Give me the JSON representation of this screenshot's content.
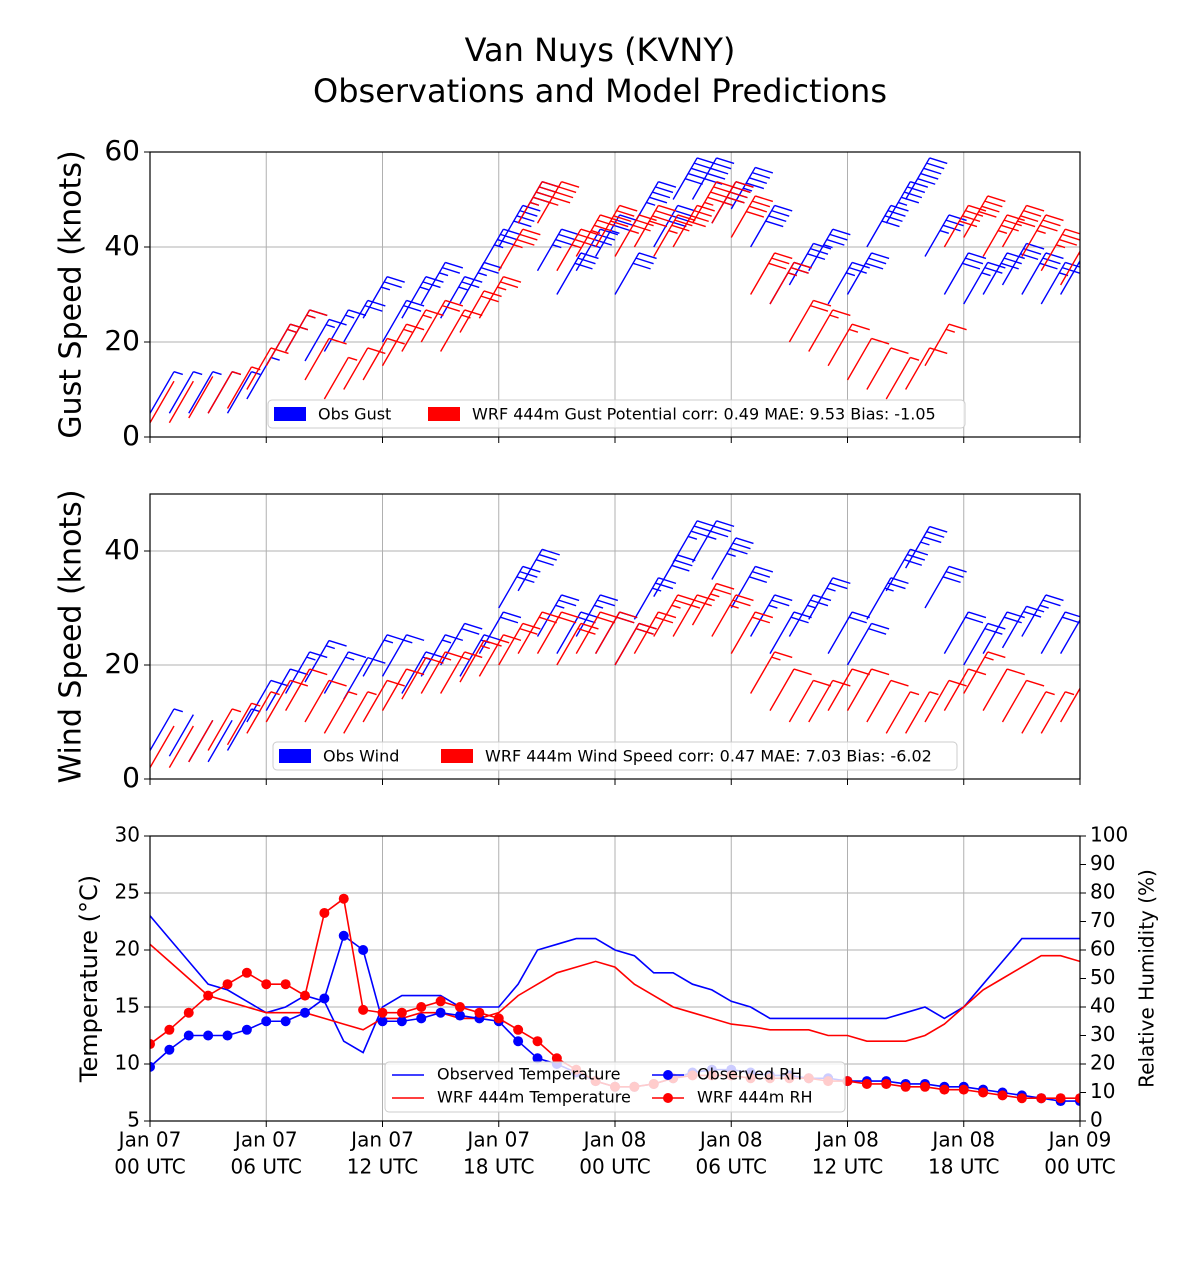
{
  "chart_data": [
    {
      "type": "barbs",
      "title": "Van Nuys (KVNY)",
      "subtitle": "Observations and Model Predictions",
      "ylabel": "Gust Speed (knots)",
      "ylim": [
        0,
        60
      ],
      "yticks": [
        0,
        20,
        40,
        60
      ],
      "xlim": [
        0,
        48
      ],
      "xticks": [
        0,
        6,
        12,
        18,
        24,
        30,
        36,
        42,
        48
      ],
      "grid": true,
      "x": [
        0,
        1,
        2,
        3,
        4,
        5,
        6,
        7,
        8,
        9,
        10,
        11,
        12,
        13,
        14,
        15,
        16,
        17,
        18,
        19,
        20,
        21,
        22,
        23,
        24,
        25,
        26,
        27,
        28,
        29,
        30,
        31,
        32,
        33,
        34,
        35,
        36,
        37,
        38,
        39,
        40,
        41,
        42,
        43,
        44,
        45,
        46,
        47,
        48
      ],
      "series": [
        {
          "name": "Obs Gust",
          "color": "#0000ff",
          "values": [
            5,
            5,
            5,
            5,
            5,
            8,
            15,
            18,
            16,
            18,
            20,
            25,
            20,
            25,
            28,
            25,
            28,
            35,
            40,
            45,
            35,
            30,
            35,
            38,
            30,
            45,
            40,
            50,
            50,
            45,
            48,
            40,
            28,
            32,
            35,
            28,
            30,
            40,
            45,
            50,
            38,
            30,
            28,
            30,
            32,
            30,
            28,
            30,
            30
          ]
        },
        {
          "name": "WRF 444m Gust Potential corr: 0.49 MAE: 9.53 Bias: -1.05",
          "color": "#ff0000",
          "values": [
            3,
            3,
            4,
            5,
            6,
            10,
            15,
            18,
            12,
            8,
            10,
            12,
            15,
            18,
            20,
            18,
            22,
            25,
            35,
            45,
            45,
            35,
            38,
            40,
            38,
            40,
            38,
            40,
            45,
            45,
            42,
            30,
            28,
            20,
            18,
            15,
            12,
            10,
            8,
            10,
            15,
            40,
            42,
            38,
            40,
            38,
            35,
            32,
            28
          ]
        }
      ]
    },
    {
      "type": "barbs",
      "ylabel": "Wind Speed (knots)",
      "ylim": [
        0,
        50
      ],
      "yticks": [
        0,
        20,
        40
      ],
      "xlim": [
        0,
        48
      ],
      "xticks": [
        0,
        6,
        12,
        18,
        24,
        30,
        36,
        42,
        48
      ],
      "grid": true,
      "x": [
        0,
        1,
        2,
        3,
        4,
        5,
        6,
        7,
        8,
        9,
        10,
        11,
        12,
        13,
        14,
        15,
        16,
        17,
        18,
        19,
        20,
        21,
        22,
        23,
        24,
        25,
        26,
        27,
        28,
        29,
        30,
        31,
        32,
        33,
        34,
        35,
        36,
        37,
        38,
        39,
        40,
        41,
        42,
        43,
        44,
        45,
        46,
        47,
        48
      ],
      "series": [
        {
          "name": "Obs Wind",
          "color": "#0000ff",
          "values": [
            5,
            4,
            3,
            3,
            5,
            10,
            12,
            15,
            17,
            15,
            14,
            18,
            18,
            15,
            18,
            20,
            18,
            22,
            30,
            33,
            25,
            22,
            25,
            22,
            20,
            28,
            32,
            38,
            38,
            35,
            30,
            25,
            22,
            25,
            28,
            22,
            20,
            28,
            33,
            37,
            30,
            22,
            20,
            22,
            23,
            25,
            22,
            22,
            20
          ]
        },
        {
          "name": "WRF 444m Wind Speed corr: 0.47 MAE: 7.03 Bias: -6.02",
          "color": "#ff0000",
          "values": [
            2,
            2,
            3,
            5,
            6,
            8,
            10,
            12,
            10,
            8,
            8,
            10,
            12,
            14,
            15,
            15,
            17,
            18,
            20,
            22,
            22,
            20,
            22,
            22,
            20,
            22,
            25,
            25,
            27,
            25,
            22,
            15,
            12,
            10,
            10,
            12,
            12,
            10,
            8,
            8,
            10,
            12,
            15,
            12,
            10,
            8,
            8,
            10,
            12
          ]
        }
      ]
    },
    {
      "type": "line",
      "ylabel": "Temperature (°C)",
      "y2label": "Relative Humidity (%)",
      "ylim": [
        5,
        30
      ],
      "yticks": [
        5,
        10,
        15,
        20,
        25,
        30
      ],
      "y2lim": [
        0,
        100
      ],
      "y2ticks": [
        0,
        10,
        20,
        30,
        40,
        50,
        60,
        70,
        80,
        90,
        100
      ],
      "xlim": [
        0,
        48
      ],
      "grid": true,
      "xticks": [
        {
          "value": 0,
          "label": [
            "Jan 07",
            "00 UTC"
          ]
        },
        {
          "value": 6,
          "label": [
            "Jan 07",
            "06 UTC"
          ]
        },
        {
          "value": 12,
          "label": [
            "Jan 07",
            "12 UTC"
          ]
        },
        {
          "value": 18,
          "label": [
            "Jan 07",
            "18 UTC"
          ]
        },
        {
          "value": 24,
          "label": [
            "Jan 08",
            "00 UTC"
          ]
        },
        {
          "value": 30,
          "label": [
            "Jan 08",
            "06 UTC"
          ]
        },
        {
          "value": 36,
          "label": [
            "Jan 08",
            "12 UTC"
          ]
        },
        {
          "value": 42,
          "label": [
            "Jan 08",
            "18 UTC"
          ]
        },
        {
          "value": 48,
          "label": [
            "Jan 09",
            "00 UTC"
          ]
        }
      ],
      "x": [
        0,
        1,
        2,
        3,
        4,
        5,
        6,
        7,
        8,
        9,
        10,
        11,
        12,
        13,
        14,
        15,
        16,
        17,
        18,
        19,
        20,
        21,
        22,
        23,
        24,
        25,
        26,
        27,
        28,
        29,
        30,
        31,
        32,
        33,
        34,
        35,
        36,
        37,
        38,
        39,
        40,
        41,
        42,
        43,
        44,
        45,
        46,
        47,
        48
      ],
      "series": [
        {
          "name": "Observed Temperature",
          "color": "#0000ff",
          "values": [
            23,
            21,
            19,
            17,
            16.5,
            15.5,
            14.5,
            15,
            16,
            15.5,
            12,
            11,
            15,
            16,
            16,
            16,
            15,
            15,
            15,
            17,
            20,
            20.5,
            21,
            21,
            20,
            19.5,
            18,
            18,
            17,
            16.5,
            15.5,
            15,
            14,
            14,
            14,
            14,
            14,
            14,
            14,
            14.5,
            15,
            14,
            15,
            17,
            19,
            21,
            21,
            21,
            21
          ]
        },
        {
          "name": "WRF 444m Temperature",
          "color": "#ff0000",
          "values": [
            20.5,
            19,
            17.5,
            16,
            15.5,
            15,
            14.5,
            14.5,
            14.5,
            14,
            13.5,
            13,
            14,
            14,
            14.5,
            14.5,
            14,
            14,
            14.5,
            16,
            17,
            18,
            18.5,
            19,
            18.5,
            17,
            16,
            15,
            14.5,
            14,
            13.5,
            13.3,
            13,
            13,
            13,
            12.5,
            12.5,
            12,
            12,
            12,
            12.5,
            13.5,
            15,
            16.5,
            17.5,
            18.5,
            19.5,
            19.5,
            19
          ]
        },
        {
          "name": "Observed RH",
          "color": "#0000ff",
          "axis": "y2",
          "marker": true,
          "values": [
            19,
            25,
            30,
            30,
            30,
            32,
            35,
            35,
            38,
            43,
            65,
            60,
            35,
            35,
            36,
            38,
            37,
            36,
            35,
            28,
            22,
            20,
            17,
            14,
            12,
            12,
            13,
            15,
            17,
            18,
            18,
            17,
            16,
            16,
            15,
            15,
            14,
            14,
            14,
            13,
            13,
            12,
            12,
            11,
            10,
            9,
            8,
            7,
            7
          ]
        },
        {
          "name": "WRF 444m RH",
          "color": "#ff0000",
          "axis": "y2",
          "marker": true,
          "values": [
            27,
            32,
            38,
            44,
            48,
            52,
            48,
            48,
            44,
            73,
            78,
            39,
            38,
            38,
            40,
            42,
            40,
            38,
            36,
            32,
            28,
            22,
            18,
            14,
            12,
            12,
            13,
            15,
            16,
            16,
            16,
            15,
            15,
            15,
            15,
            14,
            14,
            13,
            13,
            12,
            12,
            11,
            11,
            10,
            9,
            8,
            8,
            8,
            8
          ]
        }
      ]
    }
  ]
}
